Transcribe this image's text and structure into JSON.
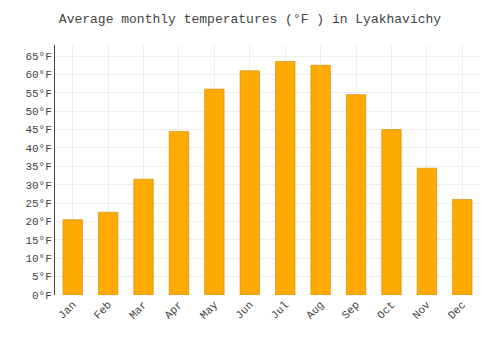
{
  "chart_data": {
    "type": "bar",
    "title": "Average monthly temperatures (°F ) in Lyakhavichy",
    "categories": [
      "Jan",
      "Feb",
      "Mar",
      "Apr",
      "May",
      "Jun",
      "Jul",
      "Aug",
      "Sep",
      "Oct",
      "Nov",
      "Dec"
    ],
    "values": [
      20.5,
      22.5,
      31.5,
      44.5,
      56.0,
      61.0,
      63.5,
      62.5,
      54.5,
      45.0,
      34.5,
      26.0
    ],
    "color": "#FFAA00",
    "ylim": [
      0,
      68
    ],
    "yticks": [
      {
        "value": 0,
        "label": "0°F"
      },
      {
        "value": 5,
        "label": "5°F"
      },
      {
        "value": 10,
        "label": "10°F"
      },
      {
        "value": 15,
        "label": "15°F"
      },
      {
        "value": 20,
        "label": "20°F"
      },
      {
        "value": 25,
        "label": "25°F"
      },
      {
        "value": 30,
        "label": "30°F"
      },
      {
        "value": 35,
        "label": "35°F"
      },
      {
        "value": 40,
        "label": "40°F"
      },
      {
        "value": 45,
        "label": "45°F"
      },
      {
        "value": 50,
        "label": "50°F"
      },
      {
        "value": 55,
        "label": "55°F"
      },
      {
        "value": 60,
        "label": "60°F"
      },
      {
        "value": 65,
        "label": "65°F"
      }
    ],
    "grid": true
  }
}
